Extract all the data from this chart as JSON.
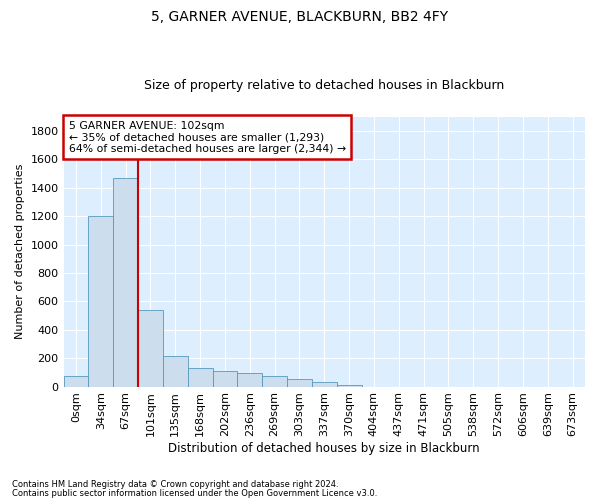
{
  "title": "5, GARNER AVENUE, BLACKBURN, BB2 4FY",
  "subtitle": "Size of property relative to detached houses in Blackburn",
  "xlabel": "Distribution of detached houses by size in Blackburn",
  "ylabel": "Number of detached properties",
  "bar_color": "#ccdded",
  "bar_edge_color": "#5599bb",
  "background_color": "#ddeeff",
  "grid_color": "#ffffff",
  "categories": [
    "0sqm",
    "34sqm",
    "67sqm",
    "101sqm",
    "135sqm",
    "168sqm",
    "202sqm",
    "236sqm",
    "269sqm",
    "303sqm",
    "337sqm",
    "370sqm",
    "404sqm",
    "437sqm",
    "471sqm",
    "505sqm",
    "538sqm",
    "572sqm",
    "606sqm",
    "639sqm",
    "673sqm"
  ],
  "values": [
    75,
    1200,
    1470,
    540,
    215,
    130,
    110,
    95,
    75,
    55,
    30,
    10,
    0,
    0,
    0,
    0,
    0,
    0,
    0,
    0,
    0
  ],
  "ylim": [
    0,
    1900
  ],
  "yticks": [
    0,
    200,
    400,
    600,
    800,
    1000,
    1200,
    1400,
    1600,
    1800
  ],
  "property_label": "5 GARNER AVENUE: 102sqm",
  "annotation_line1": "← 35% of detached houses are smaller (1,293)",
  "annotation_line2": "64% of semi-detached houses are larger (2,344) →",
  "annotation_box_color": "#ffffff",
  "annotation_border_color": "#cc0000",
  "vline_color": "#cc0000",
  "vline_x": 2.5,
  "footer_line1": "Contains HM Land Registry data © Crown copyright and database right 2024.",
  "footer_line2": "Contains public sector information licensed under the Open Government Licence v3.0.",
  "fig_bg": "#ffffff",
  "title_fontsize": 10,
  "subtitle_fontsize": 9
}
